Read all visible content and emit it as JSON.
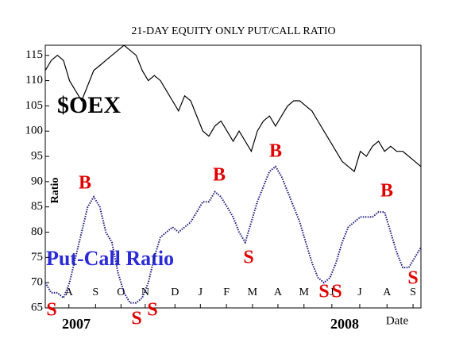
{
  "chart_data": {
    "type": "line",
    "title": "21-DAY EQUITY ONLY PUT/CALL RATIO",
    "y_label": "Ratio",
    "x_label": "Date",
    "years": [
      "2007",
      "2008"
    ],
    "x": [
      0,
      1,
      2,
      3,
      4,
      5,
      6,
      7,
      8,
      9,
      10,
      11,
      12,
      13,
      14,
      15,
      16,
      17,
      18,
      19,
      20,
      21,
      22,
      23,
      24,
      25,
      26,
      27,
      28,
      29,
      30,
      31,
      32,
      33,
      34,
      35,
      36,
      37,
      38,
      39,
      40,
      41,
      42,
      43,
      44,
      45,
      46,
      47,
      48,
      49,
      50,
      51,
      52,
      53,
      54,
      55,
      56,
      57,
      58,
      59,
      60,
      61,
      62
    ],
    "xlim": [
      0,
      62
    ],
    "xticks": [
      {
        "value": 3.9,
        "label": "A"
      },
      {
        "value": 8.3,
        "label": "S"
      },
      {
        "value": 12.5,
        "label": "O"
      },
      {
        "value": 16.5,
        "label": "N"
      },
      {
        "value": 21.4,
        "label": "D"
      },
      {
        "value": 25.6,
        "label": "J"
      },
      {
        "value": 29.9,
        "label": "F"
      },
      {
        "value": 34.2,
        "label": "M"
      },
      {
        "value": 38.4,
        "label": "A"
      },
      {
        "value": 42.7,
        "label": "M"
      },
      {
        "value": 47.3,
        "label": "J"
      },
      {
        "value": 51.9,
        "label": "J"
      },
      {
        "value": 56.4,
        "label": "A"
      },
      {
        "value": 60.7,
        "label": "S"
      }
    ],
    "ylim": [
      65,
      117
    ],
    "yticks": [
      65,
      70,
      75,
      80,
      85,
      90,
      95,
      100,
      105,
      110,
      115
    ],
    "series": [
      {
        "name": "$OEX",
        "color": "#000000",
        "values": [
          112,
          114,
          115,
          114,
          110,
          108,
          106,
          109,
          112,
          113,
          114,
          115,
          116,
          117,
          116,
          115,
          112,
          110,
          111,
          110,
          108,
          106,
          104,
          107,
          106,
          103,
          100,
          99,
          101,
          102,
          100,
          98,
          100,
          98,
          96,
          100,
          102,
          103,
          101,
          103,
          105,
          106,
          106,
          105,
          104,
          102,
          100,
          98,
          96,
          94,
          93,
          92,
          96,
          95,
          97,
          98,
          96,
          97,
          96,
          96,
          95,
          94,
          93
        ]
      },
      {
        "name": "Put-Call Ratio",
        "color": "#1a1a80",
        "values": [
          70,
          68,
          68,
          67,
          70,
          75,
          80,
          85,
          87,
          85,
          80,
          78,
          72,
          68,
          66,
          66,
          67,
          70,
          75,
          79,
          80,
          81,
          80,
          81,
          82,
          84,
          86,
          86,
          88,
          87,
          85,
          83,
          80,
          78,
          82,
          86,
          89,
          92,
          93,
          91,
          88,
          85,
          82,
          78,
          74,
          71,
          70,
          71,
          74,
          78,
          81,
          82,
          83,
          83,
          83,
          84,
          84,
          80,
          76,
          73,
          73,
          75,
          77
        ]
      }
    ],
    "signals": [
      "S",
      "B",
      "S",
      "S",
      "B",
      "S",
      "B",
      "S",
      "S",
      "B",
      "S"
    ],
    "signal_color": "#e00000",
    "label_color": "#2a2ad8"
  }
}
